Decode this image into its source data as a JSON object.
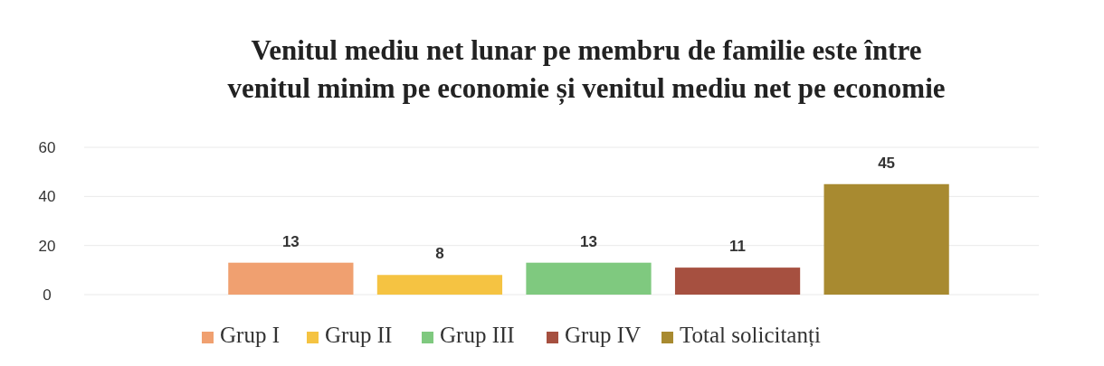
{
  "chart_data": {
    "type": "bar",
    "title": "Venitul mediu net lunar pe membru de familie este între venitul minim pe economie și venitul mediu net pe economie",
    "categories": [
      null
    ],
    "series": [
      {
        "name": "Grup I",
        "color": "#f0a070",
        "values": [
          13
        ]
      },
      {
        "name": "Grup II",
        "color": "#f5c342",
        "values": [
          8
        ]
      },
      {
        "name": "Grup III",
        "color": "#7fc97f",
        "values": [
          13
        ]
      },
      {
        "name": "Grup IV",
        "color": "#a65040",
        "values": [
          11
        ]
      },
      {
        "name": "Total solicitanți",
        "color": "#a88a30",
        "values": [
          45
        ]
      }
    ],
    "ylim": [
      0,
      60
    ],
    "yticks": [
      0,
      20,
      40,
      60
    ],
    "grid": "y",
    "legend": "bottom",
    "data_labels": true
  }
}
